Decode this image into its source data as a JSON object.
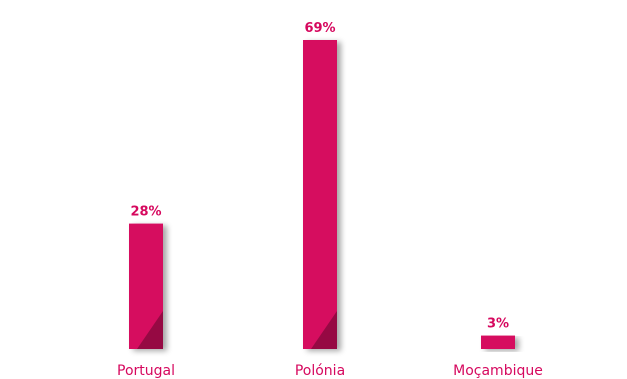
{
  "chart_data": {
    "type": "bar",
    "categories": [
      "Portugal",
      "Polónia",
      "Moçambique"
    ],
    "values": [
      28,
      69,
      3
    ],
    "value_labels": [
      "28%",
      "69%",
      "3%"
    ],
    "ylim": [
      0,
      69
    ],
    "grid": false,
    "colors": {
      "bar": "#d6085e",
      "bar_shadow": "#8f0940",
      "axis": "#d6085e",
      "value_label": "#d6085e",
      "category_label": "#d6085e"
    }
  }
}
